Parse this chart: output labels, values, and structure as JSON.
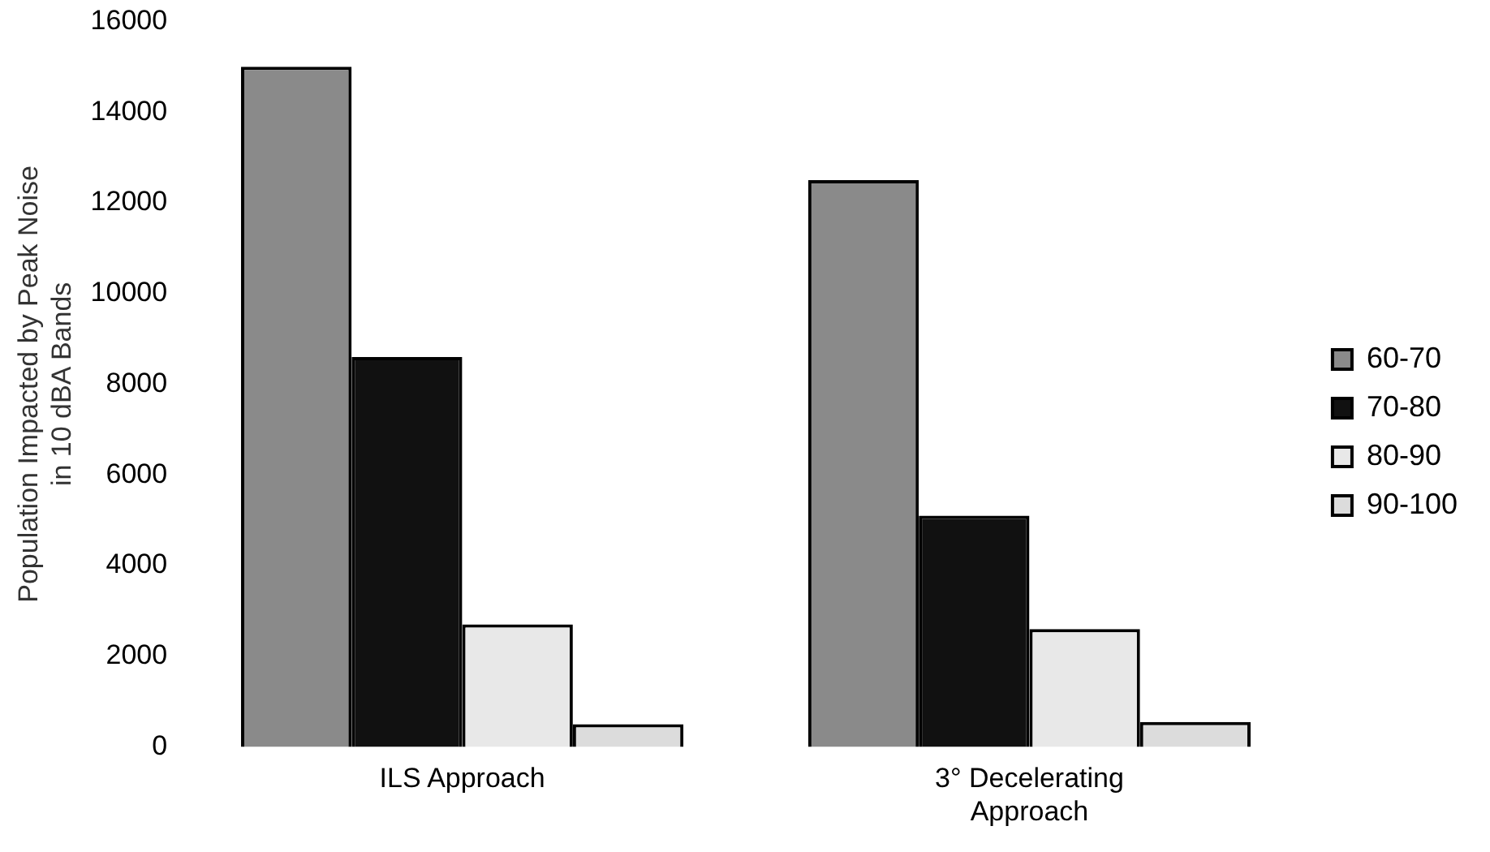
{
  "chart_data": {
    "type": "bar",
    "ylabel": "Population Impacted by Peak Noise\nin 10 dBA Bands",
    "categories": [
      "ILS Approach",
      "3° Decelerating\nApproach"
    ],
    "series": [
      {
        "name": "60-70",
        "color": "#8a8a8a",
        "values": [
          15000,
          12500
        ]
      },
      {
        "name": "70-80",
        "color": "#111111",
        "values": [
          8600,
          5100
        ]
      },
      {
        "name": "80-90",
        "color": "#e8e8e8",
        "values": [
          2700,
          2600
        ]
      },
      {
        "name": "90-100",
        "color": "#dcdcdc",
        "values": [
          500,
          550
        ]
      }
    ],
    "ylim": [
      0,
      16000
    ],
    "yticks": [
      0,
      2000,
      4000,
      6000,
      8000,
      10000,
      12000,
      14000,
      16000
    ],
    "grid": false,
    "legend": "right"
  }
}
